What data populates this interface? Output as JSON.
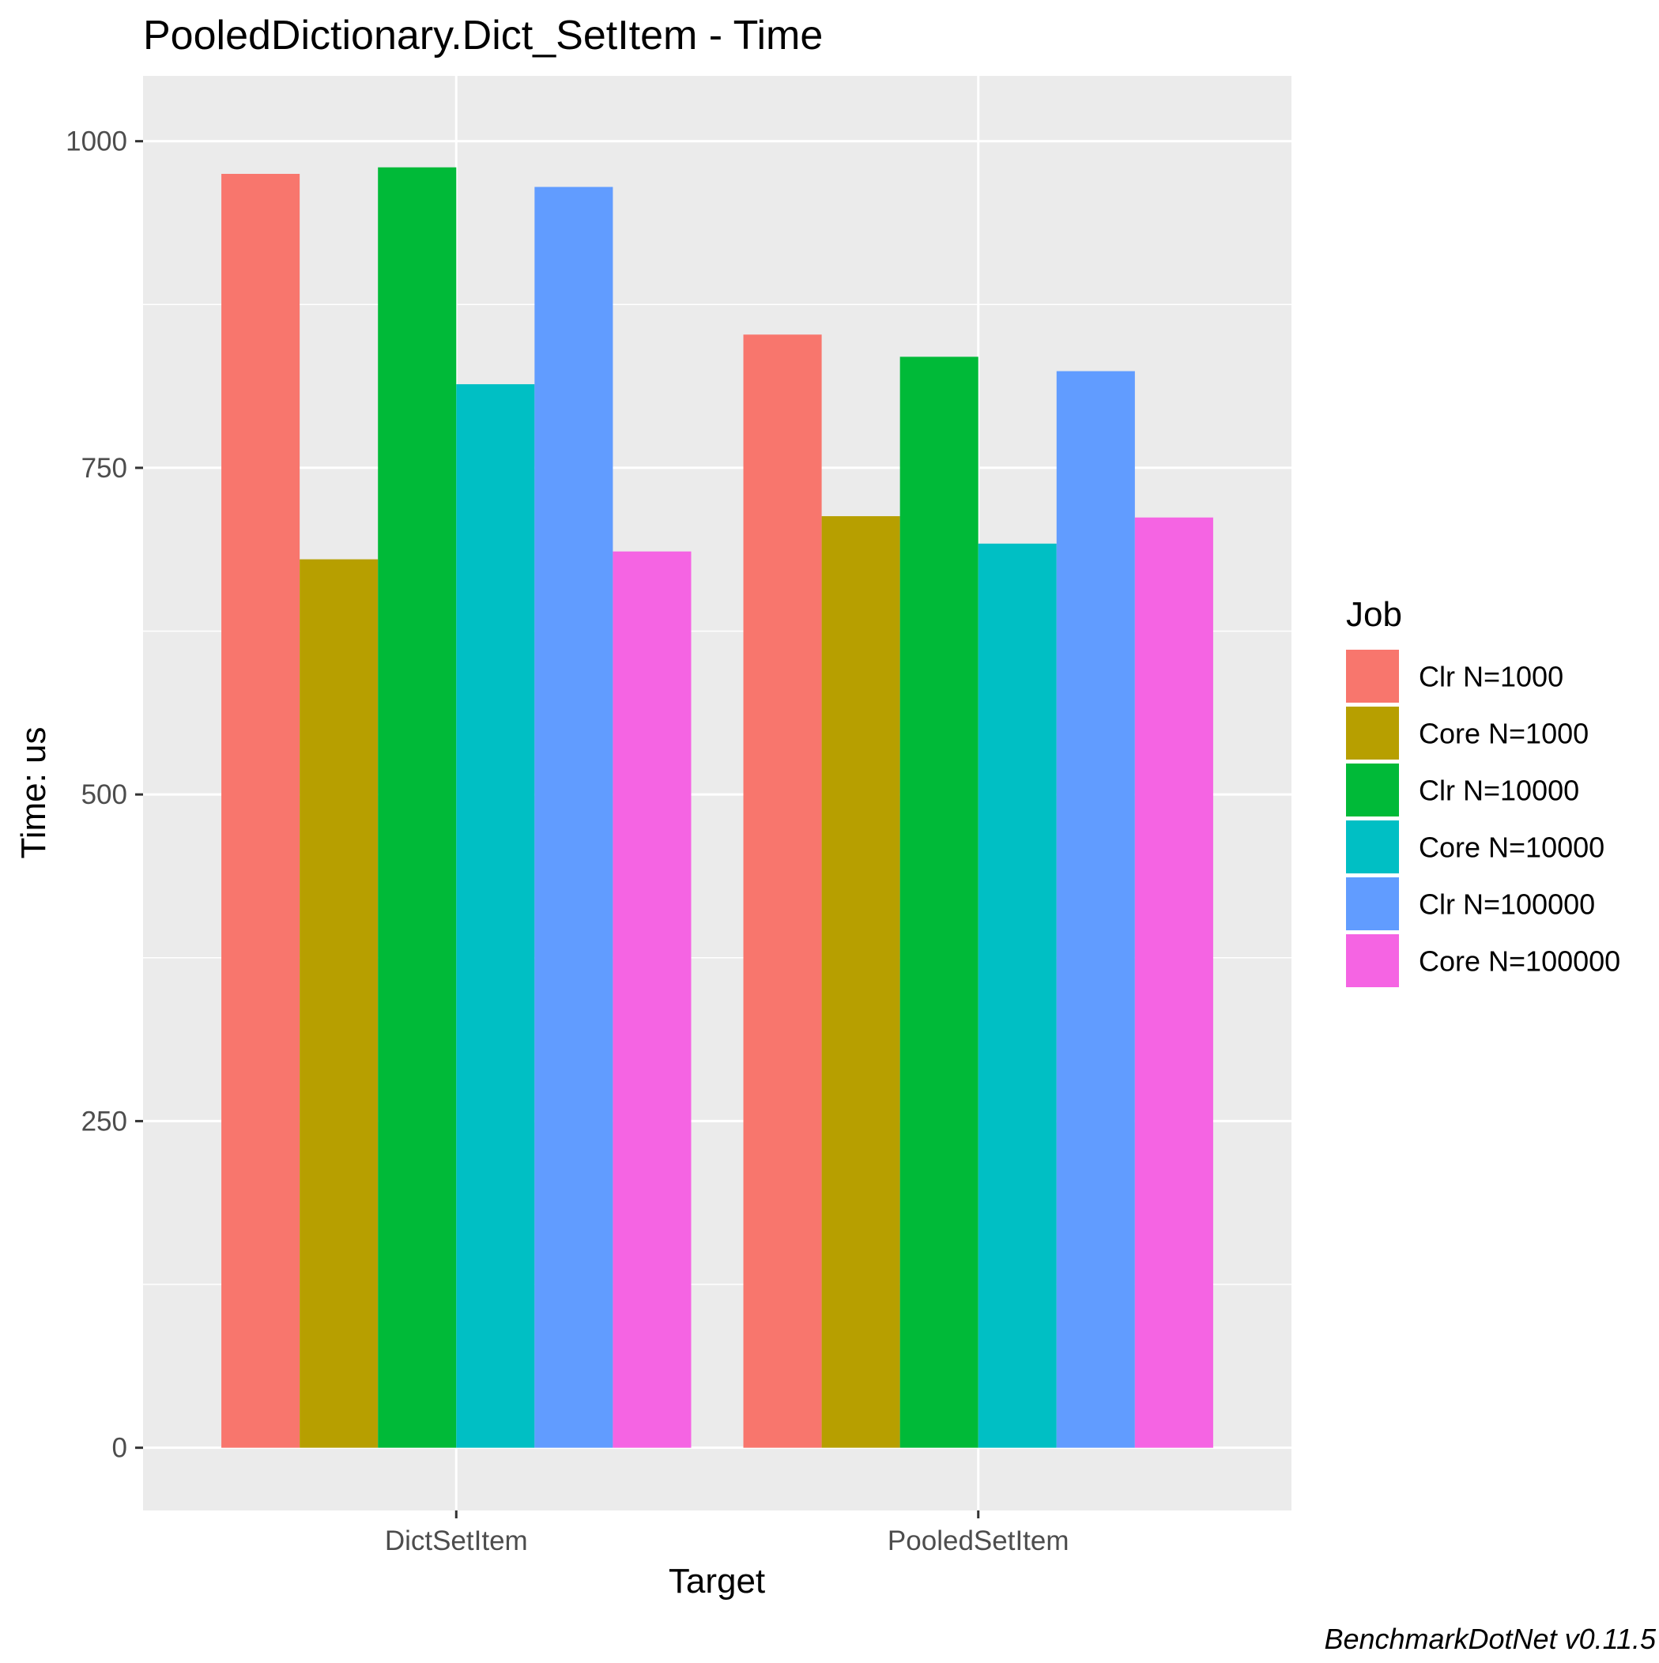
{
  "chart_data": {
    "type": "bar",
    "title": "PooledDictionary.Dict_SetItem - Time",
    "xlabel": "Target",
    "ylabel": "Time: us",
    "caption": "BenchmarkDotNet v0.11.5",
    "legend_title": "Job",
    "legend_position": "right",
    "grid": true,
    "ylim": [
      -48,
      1050
    ],
    "yticks": [
      0,
      250,
      500,
      750,
      1000
    ],
    "categories": [
      "DictSetItem",
      "PooledSetItem"
    ],
    "series": [
      {
        "name": "Clr N=1000",
        "color": "#F8766D",
        "values": [
          975,
          852
        ]
      },
      {
        "name": "Core N=1000",
        "color": "#B79F00",
        "values": [
          680,
          713
        ]
      },
      {
        "name": "Clr N=10000",
        "color": "#00BA38",
        "values": [
          980,
          835
        ]
      },
      {
        "name": "Core N=10000",
        "color": "#00BFC4",
        "values": [
          814,
          692
        ]
      },
      {
        "name": "Clr N=100000",
        "color": "#619CFF",
        "values": [
          965,
          824
        ]
      },
      {
        "name": "Core N=100000",
        "color": "#F564E3",
        "values": [
          686,
          712
        ]
      }
    ]
  },
  "colors": {
    "panel_background": "#EBEBEB",
    "grid_line": "#FFFFFF",
    "tick_mark": "#333333"
  }
}
